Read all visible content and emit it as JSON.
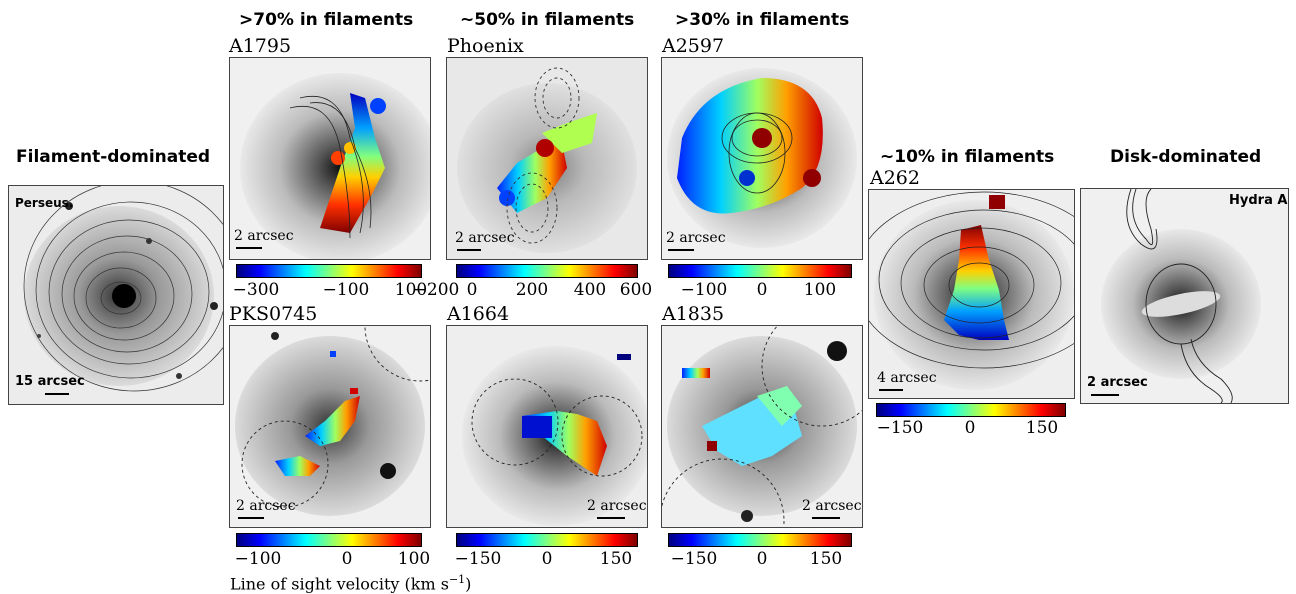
{
  "headers": {
    "col1": ">70% in filaments",
    "col2": "~50% in filaments",
    "col3": ">30% in filaments",
    "filament_dominated": "Filament-dominated",
    "ten_percent": "~10% in filaments",
    "disk_dominated": "Disk-dominated"
  },
  "panels": {
    "perseus": {
      "name": "Perseus",
      "scale": "15 arcsec"
    },
    "a1795": {
      "name": "A1795",
      "scale": "2 arcsec"
    },
    "phoenix": {
      "name": "Phoenix",
      "scale": "2 arcsec"
    },
    "a2597": {
      "name": "A2597",
      "scale": "2 arcsec"
    },
    "pks0745": {
      "name": "PKS0745",
      "scale": "2 arcsec"
    },
    "a1664": {
      "name": "A1664",
      "scale": "2 arcsec"
    },
    "a1835": {
      "name": "A1835",
      "scale": "2 arcsec"
    },
    "a262": {
      "name": "A262",
      "scale": "4 arcsec"
    },
    "hydra": {
      "name": "Hydra A",
      "scale": "2 arcsec"
    }
  },
  "colorbars": {
    "a1795": [
      "−300",
      "−100",
      "100"
    ],
    "phoenix": [
      "−200",
      "0",
      "200",
      "400",
      "600"
    ],
    "a2597": [
      "−100",
      "0",
      "100"
    ],
    "pks0745": [
      "−100",
      "0",
      "100"
    ],
    "a1664": [
      "−150",
      "0",
      "150"
    ],
    "a1835": [
      "−150",
      "0",
      "150"
    ],
    "a262": [
      "−150",
      "0",
      "150"
    ]
  },
  "caption": "Line of sight velocity (km s",
  "caption_exp": "−1",
  "caption_close": ")",
  "colors": {
    "colormap": "jet",
    "contour": "#222222"
  }
}
